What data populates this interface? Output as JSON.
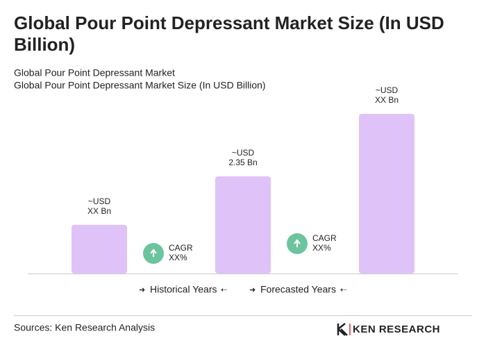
{
  "chart_data": {
    "type": "bar",
    "title": "Global Pour Point Depressant Market Size (In USD Billion)",
    "subtitle": [
      "Global Pour Point Depressant Market",
      "Global Pour Point Depressant Market Size (In USD Billion)"
    ],
    "categories": [
      null,
      null,
      null
    ],
    "values": [
      1.18,
      2.35,
      3.86
    ],
    "value_labels": [
      [
        "~USD",
        "XX Bn"
      ],
      [
        "~USD",
        "2.35 Bn"
      ],
      [
        "~USD",
        "XX Bn"
      ]
    ],
    "color": "#dfc3f8",
    "annotations": [
      [
        "CAGR",
        "XX%"
      ],
      [
        "CAGR",
        "XX%"
      ]
    ],
    "legend": [
      "Historical Years",
      "Forecasted Years"
    ],
    "source": "Sources: Ken Research Analysis",
    "logo": "KEN RESEARCH"
  }
}
